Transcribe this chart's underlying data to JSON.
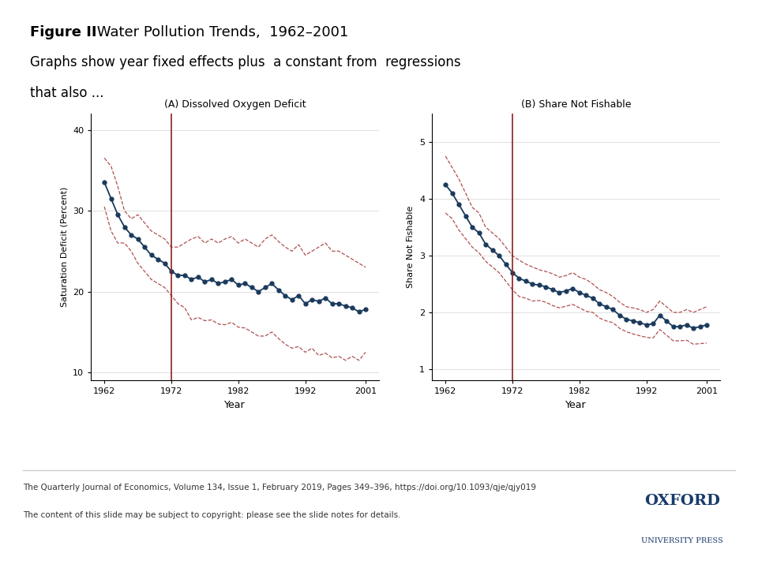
{
  "title_bold": "Figure II",
  "title_rest": " Water Pollution Trends,  1962–2001",
  "subtitle1": "Graphs show year fixed effects plus  a constant from  regressions",
  "subtitle2": "that also ...",
  "panel_A_title": "(A) Dissolved Oxygen Deficit",
  "panel_B_title": "(B) Share Not Fishable",
  "xlabel": "Year",
  "ylabel_A": "Saturation Deficit (Percent)",
  "ylabel_B": "Share Not Fishable",
  "vline_year": 1972,
  "xticks": [
    1962,
    1972,
    1982,
    1992,
    2001
  ],
  "yticks_A": [
    10,
    20,
    30,
    40
  ],
  "yticks_B": [
    1,
    2,
    3,
    4,
    5
  ],
  "ylim_A": [
    9,
    42
  ],
  "ylim_B": [
    0.8,
    5.5
  ],
  "main_color": "#1a3a5c",
  "ci_color": "#b05050",
  "vline_color": "#8b2020",
  "background_color": "#ffffff",
  "footer_text": "The Quarterly Journal of Economics, Volume 134, Issue 1, February 2019, Pages 349–396, https://doi.org/10.1093/qje/qjy019",
  "footer_text2": "The content of this slide may be subject to copyright: please see the slide notes for details.",
  "oxford_line1": "OXFORD",
  "oxford_line2": "UNIVERSITY PRESS",
  "years_A": [
    1962,
    1963,
    1964,
    1965,
    1966,
    1967,
    1968,
    1969,
    1970,
    1971,
    1972,
    1973,
    1974,
    1975,
    1976,
    1977,
    1978,
    1979,
    1980,
    1981,
    1982,
    1983,
    1984,
    1985,
    1986,
    1987,
    1988,
    1989,
    1990,
    1991,
    1992,
    1993,
    1994,
    1995,
    1996,
    1997,
    1998,
    1999,
    2000,
    2001
  ],
  "main_A": [
    33.5,
    31.5,
    29.5,
    28.0,
    27.0,
    26.5,
    25.5,
    24.5,
    24.0,
    23.5,
    22.5,
    22.0,
    22.0,
    21.5,
    21.8,
    21.2,
    21.5,
    21.0,
    21.2,
    21.5,
    20.8,
    21.0,
    20.5,
    20.0,
    20.5,
    21.0,
    20.2,
    19.5,
    19.0,
    19.5,
    18.5,
    19.0,
    18.8,
    19.2,
    18.5,
    18.5,
    18.2,
    18.0,
    17.5,
    17.8
  ],
  "upper_A": [
    36.5,
    35.5,
    33.0,
    30.0,
    29.0,
    29.5,
    28.5,
    27.5,
    27.0,
    26.5,
    25.5,
    25.5,
    26.0,
    26.5,
    26.8,
    26.0,
    26.5,
    26.0,
    26.5,
    26.8,
    26.0,
    26.5,
    26.0,
    25.5,
    26.5,
    27.0,
    26.2,
    25.5,
    25.0,
    25.8,
    24.5,
    25.0,
    25.5,
    26.0,
    25.0,
    25.0,
    24.5,
    24.0,
    23.5,
    23.0
  ],
  "lower_A": [
    30.5,
    27.5,
    26.0,
    26.0,
    25.0,
    23.5,
    22.5,
    21.5,
    21.0,
    20.5,
    19.5,
    18.5,
    18.0,
    16.5,
    16.8,
    16.4,
    16.5,
    16.0,
    15.9,
    16.2,
    15.6,
    15.5,
    15.0,
    14.5,
    14.5,
    15.0,
    14.2,
    13.5,
    13.0,
    13.2,
    12.5,
    13.0,
    12.1,
    12.4,
    11.8,
    12.0,
    11.5,
    12.0,
    11.5,
    12.5
  ],
  "years_B": [
    1962,
    1963,
    1964,
    1965,
    1966,
    1967,
    1968,
    1969,
    1970,
    1971,
    1972,
    1973,
    1974,
    1975,
    1976,
    1977,
    1978,
    1979,
    1980,
    1981,
    1982,
    1983,
    1984,
    1985,
    1986,
    1987,
    1988,
    1989,
    1990,
    1991,
    1992,
    1993,
    1994,
    1995,
    1996,
    1997,
    1998,
    1999,
    2000,
    2001
  ],
  "main_B": [
    4.25,
    4.1,
    3.9,
    3.7,
    3.5,
    3.4,
    3.2,
    3.1,
    3.0,
    2.85,
    2.7,
    2.6,
    2.55,
    2.5,
    2.48,
    2.45,
    2.4,
    2.35,
    2.38,
    2.42,
    2.35,
    2.3,
    2.25,
    2.15,
    2.1,
    2.05,
    1.95,
    1.88,
    1.85,
    1.82,
    1.78,
    1.8,
    1.95,
    1.85,
    1.75,
    1.75,
    1.78,
    1.72,
    1.75,
    1.78
  ],
  "upper_B": [
    4.75,
    4.55,
    4.35,
    4.1,
    3.85,
    3.75,
    3.5,
    3.4,
    3.3,
    3.15,
    3.0,
    2.92,
    2.85,
    2.8,
    2.75,
    2.72,
    2.68,
    2.62,
    2.65,
    2.7,
    2.62,
    2.58,
    2.5,
    2.4,
    2.35,
    2.28,
    2.18,
    2.1,
    2.08,
    2.05,
    2.0,
    2.05,
    2.2,
    2.1,
    2.0,
    2.0,
    2.05,
    2.0,
    2.05,
    2.1
  ],
  "lower_B": [
    3.75,
    3.65,
    3.45,
    3.3,
    3.15,
    3.05,
    2.9,
    2.8,
    2.7,
    2.55,
    2.4,
    2.28,
    2.25,
    2.2,
    2.21,
    2.18,
    2.12,
    2.08,
    2.11,
    2.14,
    2.08,
    2.02,
    2.0,
    1.9,
    1.85,
    1.82,
    1.72,
    1.66,
    1.62,
    1.59,
    1.56,
    1.55,
    1.7,
    1.6,
    1.5,
    1.5,
    1.51,
    1.44,
    1.45,
    1.46
  ]
}
